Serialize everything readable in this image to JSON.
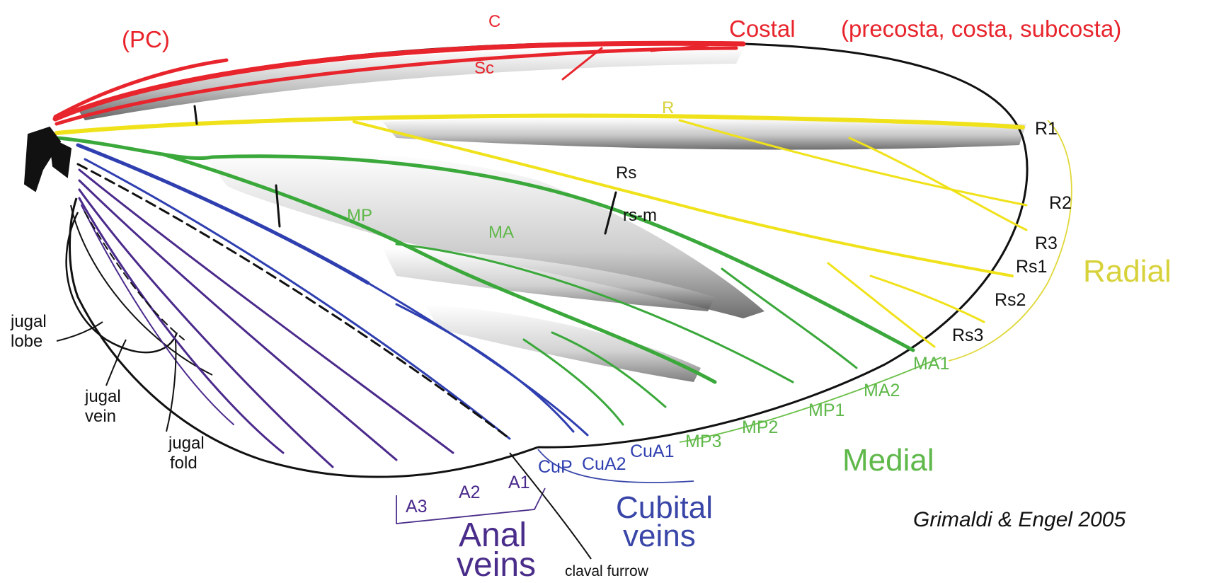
{
  "colors": {
    "costal": "#e8242c",
    "radial": "#f0e21a",
    "medial": "#3aa83a",
    "cubital": "#2f3fb0",
    "anal": "#4b2a8c",
    "outline": "#111111",
    "radial_text": "#d8d23a",
    "medial_text": "#5fb84a",
    "cubital_text": "#3946a8",
    "anal_text": "#4a2d8a"
  },
  "groups": {
    "costal": "Costal",
    "costal_sub": "(precosta, costa, subcosta)",
    "pc": "(PC)",
    "radial": "Radial",
    "medial": "Medial",
    "cubital_1": "Cubital",
    "cubital_2": "veins",
    "anal_1": "Anal",
    "anal_2": "veins"
  },
  "vein_labels": {
    "c": "C",
    "sc": "Sc",
    "r": "R",
    "rs": "Rs",
    "rs_m": "rs-m",
    "mp": "MP",
    "ma": "MA"
  },
  "tip_labels": {
    "r1": "R1",
    "r2": "R2",
    "r3": "R3",
    "rs1": "Rs1",
    "rs2": "Rs2",
    "rs3": "Rs3",
    "ma1": "MA1",
    "ma2": "MA2",
    "mp1": "MP1",
    "mp2": "MP2",
    "mp3": "MP3",
    "cup": "CuP",
    "cua2": "CuA2",
    "cua1": "CuA1",
    "a1": "A1",
    "a2": "A2",
    "a3": "A3"
  },
  "annotations": {
    "jugal_lobe_1": "jugal",
    "jugal_lobe_2": "lobe",
    "jugal_vein_1": "jugal",
    "jugal_vein_2": "vein",
    "jugal_fold_1": "jugal",
    "jugal_fold_2": "fold",
    "claval_furrow": "claval furrow"
  },
  "credit": "Grimaldi & Engel 2005"
}
